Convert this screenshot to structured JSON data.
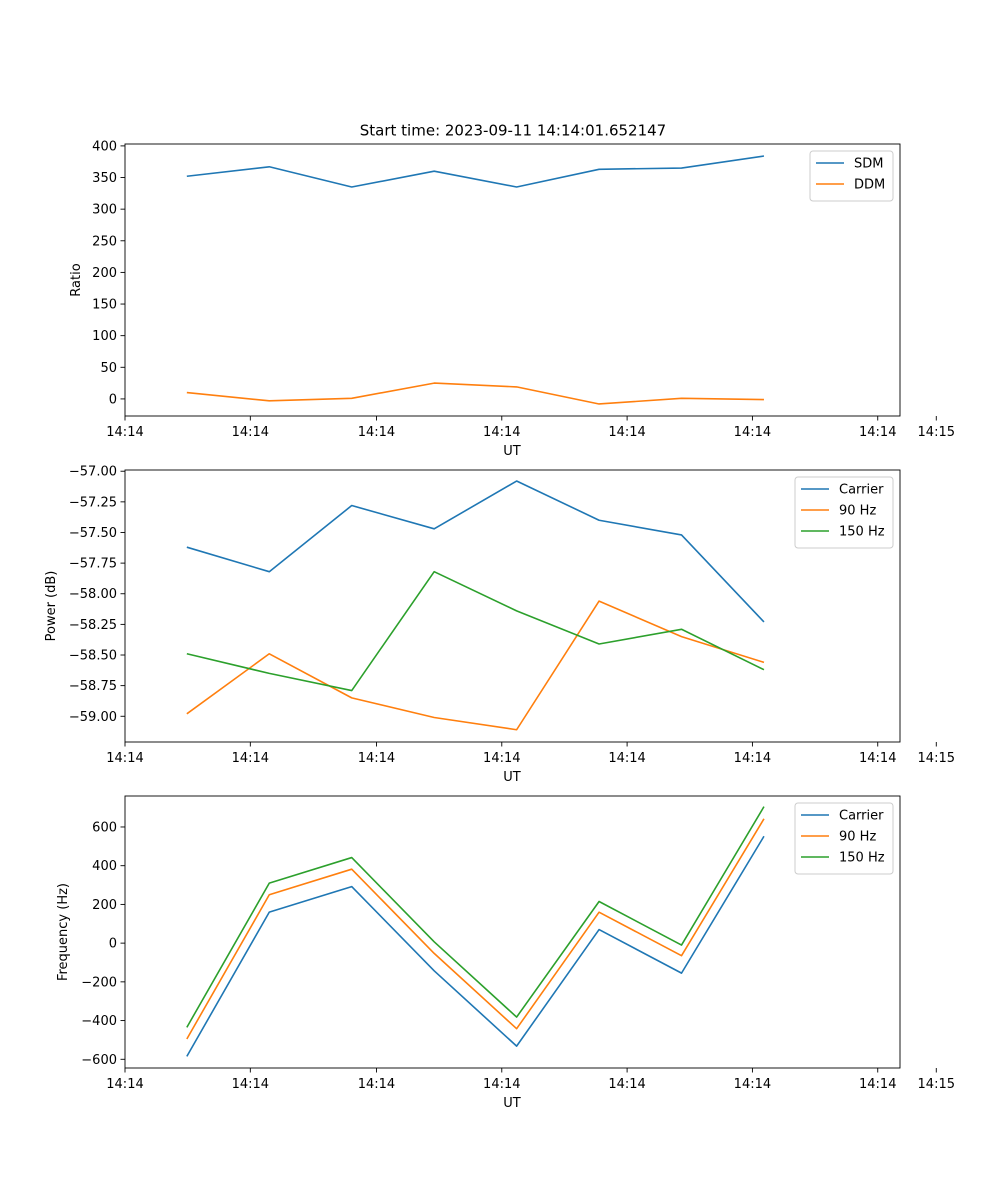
{
  "figure": {
    "title": "Start time: 2023-09-11 14:14:01.652147"
  },
  "colors": {
    "c0": "#1f77b4",
    "c1": "#ff7f0e",
    "c2": "#2ca02c"
  },
  "chart_data": [
    {
      "type": "line",
      "title": "Start time: 2023-09-11 14:14:01.652147",
      "xlabel": "UT",
      "ylabel": "Ratio",
      "x": [
        0,
        1,
        2,
        3,
        4,
        5,
        6,
        7
      ],
      "xlim": [
        -0.75,
        8.65
      ],
      "xticks": [
        -0.75,
        0.77,
        2.3,
        3.82,
        5.34,
        6.86,
        8.38
      ],
      "xtick_labels": [
        "14:14",
        "14:14",
        "14:14",
        "14:14",
        "14:14",
        "14:14",
        "14:14"
      ],
      "xtick_extra": {
        "value": 9.09,
        "label": "14:15"
      },
      "ylim": [
        -27,
        403
      ],
      "yticks": [
        0,
        50,
        100,
        150,
        200,
        250,
        300,
        350,
        400
      ],
      "ytick_labels": [
        "0",
        "50",
        "100",
        "150",
        "200",
        "250",
        "300",
        "350",
        "400"
      ],
      "legend": "top-right",
      "series": [
        {
          "name": "SDM",
          "color": "#1f77b4",
          "values": [
            352,
            367,
            335,
            360,
            335,
            363,
            365,
            384
          ]
        },
        {
          "name": "DDM",
          "color": "#ff7f0e",
          "values": [
            10,
            -3,
            1,
            25,
            19,
            -8,
            1,
            -1
          ]
        }
      ]
    },
    {
      "type": "line",
      "title": "",
      "xlabel": "UT",
      "ylabel": "Power (dB)",
      "x": [
        0,
        1,
        2,
        3,
        4,
        5,
        6,
        7
      ],
      "xlim": [
        -0.75,
        8.65
      ],
      "xticks": [
        -0.75,
        0.77,
        2.3,
        3.82,
        5.34,
        6.86,
        8.38
      ],
      "xtick_labels": [
        "14:14",
        "14:14",
        "14:14",
        "14:14",
        "14:14",
        "14:14",
        "14:14"
      ],
      "xtick_extra": {
        "value": 9.09,
        "label": "14:15"
      },
      "ylim": [
        -59.21,
        -56.99
      ],
      "yticks": [
        -59.0,
        -58.75,
        -58.5,
        -58.25,
        -58.0,
        -57.75,
        -57.5,
        -57.25,
        -57.0
      ],
      "ytick_labels": [
        "−59.00",
        "−58.75",
        "−58.50",
        "−58.25",
        "−58.00",
        "−57.75",
        "−57.50",
        "−57.25",
        "−57.00"
      ],
      "legend": "top-right",
      "series": [
        {
          "name": "Carrier",
          "color": "#1f77b4",
          "values": [
            -57.62,
            -57.82,
            -57.28,
            -57.47,
            -57.08,
            -57.4,
            -57.52,
            -58.23
          ]
        },
        {
          "name": "90 Hz",
          "color": "#ff7f0e",
          "values": [
            -58.98,
            -58.49,
            -58.85,
            -59.01,
            -59.11,
            -58.06,
            -58.35,
            -58.56
          ]
        },
        {
          "name": "150 Hz",
          "color": "#2ca02c",
          "values": [
            -58.49,
            -58.65,
            -58.79,
            -57.82,
            -58.14,
            -58.41,
            -58.29,
            -58.62
          ]
        }
      ]
    },
    {
      "type": "line",
      "title": "",
      "xlabel": "UT",
      "ylabel": "Frequency (Hz)",
      "x": [
        0,
        1,
        2,
        3,
        4,
        5,
        6,
        7
      ],
      "xlim": [
        -0.75,
        8.65
      ],
      "xticks": [
        -0.75,
        0.77,
        2.3,
        3.82,
        5.34,
        6.86,
        8.38
      ],
      "xtick_labels": [
        "14:14",
        "14:14",
        "14:14",
        "14:14",
        "14:14",
        "14:14",
        "14:14"
      ],
      "xtick_extra": {
        "value": 9.09,
        "label": "14:15"
      },
      "ylim": [
        -645,
        760
      ],
      "yticks": [
        -600,
        -400,
        -200,
        0,
        200,
        400,
        600
      ],
      "ytick_labels": [
        "−600",
        "−400",
        "−200",
        "0",
        "200",
        "400",
        "600"
      ],
      "legend": "top-right",
      "series": [
        {
          "name": "Carrier",
          "color": "#1f77b4",
          "values": [
            -585,
            160,
            292,
            -143,
            -532,
            70,
            -155,
            552
          ]
        },
        {
          "name": "90 Hz",
          "color": "#ff7f0e",
          "values": [
            -495,
            250,
            382,
            -53,
            -442,
            160,
            -65,
            642
          ]
        },
        {
          "name": "150 Hz",
          "color": "#2ca02c",
          "values": [
            -435,
            310,
            442,
            7,
            -382,
            215,
            -10,
            705
          ]
        }
      ]
    }
  ]
}
